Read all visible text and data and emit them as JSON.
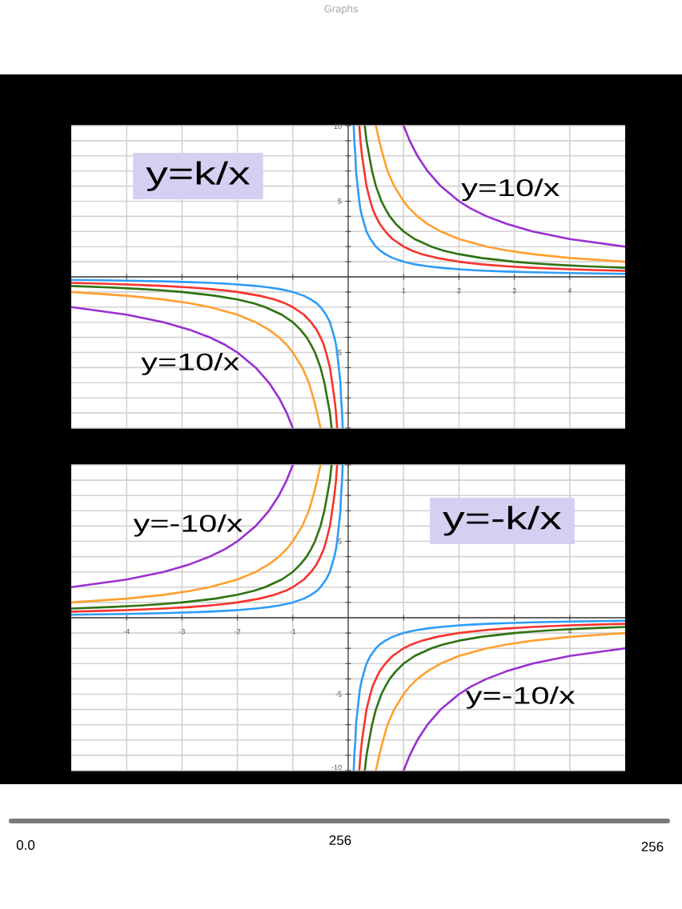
{
  "chart_data": [
    {
      "type": "other",
      "title": "Graphs"
    },
    {
      "type": "line",
      "title": "y=k/x",
      "annotations": [
        "y=10/x",
        "y=10/x"
      ],
      "xlim": [
        -5,
        5
      ],
      "ylim": [
        -10,
        10
      ],
      "xticks": [
        {
          "value": -4,
          "label": null
        },
        {
          "value": -3,
          "label": null
        },
        {
          "value": -2,
          "label": null
        },
        {
          "value": -1,
          "label": null
        },
        1,
        2,
        3,
        4
      ],
      "yticks": [
        {
          "value": -10,
          "label": null
        },
        {
          "value": -9,
          "label": null
        },
        {
          "value": -8,
          "label": null
        },
        {
          "value": -7,
          "label": null
        },
        {
          "value": -6,
          "label": null
        },
        -5,
        {
          "value": -4,
          "label": null
        },
        {
          "value": -3,
          "label": null
        },
        {
          "value": -2,
          "label": null
        },
        {
          "value": -1,
          "label": null
        },
        {
          "value": 1,
          "label": null
        },
        {
          "value": 2,
          "label": null
        },
        {
          "value": 3,
          "label": null
        },
        {
          "value": 4,
          "label": null
        },
        5,
        {
          "value": 6,
          "label": null
        },
        {
          "value": 7,
          "label": null
        },
        {
          "value": 8,
          "label": null
        },
        {
          "value": 9,
          "label": null
        },
        10
      ],
      "grid": true,
      "series": [
        {
          "color": "#9a30d0",
          "x": [
            -5,
            -4,
            -3.33,
            -2.86,
            -2.5,
            -2.22,
            -2,
            -1.67,
            -1.43,
            -1.25,
            -1.11,
            -1,
            0,
            1,
            1.11,
            1.25,
            1.43,
            1.67,
            2,
            2.22,
            2.5,
            2.86,
            3.33,
            4,
            5
          ],
          "values": [
            -2,
            -2.5,
            -3,
            -3.5,
            -4,
            -4.5,
            -5,
            -6,
            -7,
            -8,
            -9,
            -10,
            null,
            10,
            9,
            8,
            7,
            6,
            5,
            4.5,
            4,
            3.5,
            3,
            2.5,
            2
          ]
        },
        {
          "color": "#ffa030",
          "x": [
            -5,
            -4,
            -3.33,
            -2.86,
            -2.5,
            -2,
            -1.67,
            -1.43,
            -1.25,
            -1.11,
            -1,
            -0.83,
            -0.71,
            -0.63,
            -0.56,
            -0.5,
            0,
            0.5,
            0.56,
            0.63,
            0.71,
            0.83,
            1,
            1.11,
            1.25,
            1.43,
            1.67,
            2,
            2.5,
            2.86,
            3.33,
            4,
            5
          ],
          "values": [
            -1,
            -1.25,
            -1.5,
            -1.75,
            -2,
            -2.5,
            -3,
            -3.5,
            -4,
            -4.5,
            -5,
            -6,
            -7,
            -8,
            -9,
            -10,
            null,
            10,
            9,
            8,
            7,
            6,
            5,
            4.5,
            4,
            3.5,
            3,
            2.5,
            2,
            1.75,
            1.5,
            1.25,
            1
          ]
        },
        {
          "color": "#2f7312",
          "x": [
            -5,
            -4.29,
            -3.75,
            -3.33,
            -3,
            -2.4,
            -2,
            -1.71,
            -1.5,
            -1.2,
            -1,
            -0.86,
            -0.75,
            -0.67,
            -0.6,
            -0.5,
            -0.43,
            -0.38,
            -0.33,
            -0.3,
            0,
            0.3,
            0.33,
            0.38,
            0.43,
            0.5,
            0.6,
            0.67,
            0.75,
            0.86,
            1,
            1.2,
            1.5,
            1.71,
            2,
            2.4,
            3,
            3.33,
            3.75,
            4.29,
            5
          ],
          "values": [
            -0.6,
            -0.7,
            -0.8,
            -0.9,
            -1,
            -1.25,
            -1.5,
            -1.75,
            -2,
            -2.5,
            -3,
            -3.5,
            -4,
            -4.5,
            -5,
            -6,
            -7,
            -8,
            -9,
            -10,
            null,
            10,
            9,
            8,
            7,
            6,
            5,
            4.5,
            4,
            3.5,
            3,
            2.5,
            2,
            1.75,
            1.5,
            1.25,
            1,
            0.9,
            0.8,
            0.7,
            0.6
          ]
        },
        {
          "color": "#f8332e",
          "x": [
            -5,
            -4.44,
            -4,
            -3.33,
            -2.86,
            -2.5,
            -2.22,
            -2,
            -1.6,
            -1.33,
            -1.14,
            -1,
            -0.8,
            -0.67,
            -0.57,
            -0.5,
            -0.44,
            -0.4,
            -0.33,
            -0.29,
            -0.25,
            -0.22,
            -0.2,
            0,
            0.2,
            0.22,
            0.25,
            0.29,
            0.33,
            0.4,
            0.44,
            0.5,
            0.57,
            0.67,
            0.8,
            1,
            1.14,
            1.33,
            1.6,
            2,
            2.22,
            2.5,
            2.86,
            3.33,
            4,
            4.44,
            5
          ],
          "values": [
            -0.4,
            -0.45,
            -0.5,
            -0.6,
            -0.7,
            -0.8,
            -0.9,
            -1,
            -1.25,
            -1.5,
            -1.75,
            -2,
            -2.5,
            -3,
            -3.5,
            -4,
            -4.5,
            -5,
            -6,
            -7,
            -8,
            -9,
            -10,
            null,
            10,
            9,
            8,
            7,
            6,
            5,
            4.5,
            4,
            3.5,
            3,
            2.5,
            2,
            1.75,
            1.5,
            1.25,
            1,
            0.9,
            0.8,
            0.7,
            0.6,
            0.5,
            0.45,
            0.4
          ]
        },
        {
          "color": "#2e9cf7",
          "x": [
            -5,
            -4,
            -3.33,
            -2.86,
            -2.5,
            -2.22,
            -2,
            -1.67,
            -1.43,
            -1.25,
            -1.11,
            -1,
            -0.8,
            -0.67,
            -0.57,
            -0.5,
            -0.4,
            -0.33,
            -0.29,
            -0.25,
            -0.22,
            -0.2,
            -0.17,
            -0.14,
            -0.13,
            -0.11,
            -0.1,
            0,
            0.1,
            0.11,
            0.13,
            0.14,
            0.17,
            0.2,
            0.22,
            0.25,
            0.29,
            0.33,
            0.4,
            0.5,
            0.57,
            0.67,
            0.8,
            1,
            1.11,
            1.25,
            1.43,
            1.67,
            2,
            2.22,
            2.5,
            2.86,
            3.33,
            4,
            5
          ],
          "values": [
            -0.2,
            -0.25,
            -0.3,
            -0.35,
            -0.4,
            -0.45,
            -0.5,
            -0.6,
            -0.7,
            -0.8,
            -0.9,
            -1,
            -1.25,
            -1.5,
            -1.75,
            -2,
            -2.5,
            -3,
            -3.5,
            -4,
            -4.5,
            -5,
            -6,
            -7,
            -8,
            -9,
            -10,
            null,
            10,
            9,
            8,
            7,
            6,
            5,
            4.5,
            4,
            3.5,
            3,
            2.5,
            2,
            1.75,
            1.5,
            1.25,
            1,
            0.9,
            0.8,
            0.7,
            0.6,
            0.5,
            0.45,
            0.4,
            0.35,
            0.3,
            0.25,
            0.2
          ]
        }
      ]
    },
    {
      "type": "line",
      "title": "y=-k/x",
      "annotations": [
        "y=-10/x",
        "y=-10/x"
      ],
      "xlim": [
        -5,
        5
      ],
      "ylim": [
        -10,
        10
      ],
      "xticks": [
        -4,
        -3,
        -2,
        -1,
        {
          "value": 1,
          "label": null
        },
        {
          "value": 2,
          "label": null
        },
        {
          "value": 3,
          "label": null
        },
        4
      ],
      "yticks": [
        -10,
        {
          "value": -9,
          "label": null
        },
        {
          "value": -8,
          "label": null
        },
        {
          "value": -7,
          "label": null
        },
        {
          "value": -6,
          "label": null
        },
        -5,
        {
          "value": -4,
          "label": null
        },
        {
          "value": -3,
          "label": null
        },
        {
          "value": -2,
          "label": null
        },
        {
          "value": -1,
          "label": null
        },
        {
          "value": 1,
          "label": null
        },
        {
          "value": 2,
          "label": null
        },
        {
          "value": 3,
          "label": null
        },
        {
          "value": 4,
          "label": null
        },
        5,
        {
          "value": 6,
          "label": null
        },
        {
          "value": 7,
          "label": null
        },
        {
          "value": 8,
          "label": null
        },
        {
          "value": 9,
          "label": null
        },
        {
          "value": 10,
          "label": null
        }
      ],
      "grid": true,
      "series": [
        {
          "color": "#9a30d0",
          "x": [
            -5,
            -4,
            -3.33,
            -2.86,
            -2.5,
            -2.22,
            -2,
            -1.67,
            -1.43,
            -1.25,
            -1.11,
            -1,
            0,
            1,
            1.11,
            1.25,
            1.43,
            1.67,
            2,
            2.22,
            2.5,
            2.86,
            3.33,
            4,
            5
          ],
          "values": [
            2,
            2.5,
            3,
            3.5,
            4,
            4.5,
            5,
            6,
            7,
            8,
            9,
            10,
            null,
            -10,
            -9,
            -8,
            -7,
            -6,
            -5,
            -4.5,
            -4,
            -3.5,
            -3,
            -2.5,
            -2
          ]
        },
        {
          "color": "#ffa030",
          "x": [
            -5,
            -4,
            -3.33,
            -2.86,
            -2.5,
            -2,
            -1.67,
            -1.43,
            -1.25,
            -1.11,
            -1,
            -0.83,
            -0.71,
            -0.63,
            -0.56,
            -0.5,
            0,
            0.5,
            0.56,
            0.63,
            0.71,
            0.83,
            1,
            1.11,
            1.25,
            1.43,
            1.67,
            2,
            2.5,
            2.86,
            3.33,
            4,
            5
          ],
          "values": [
            1,
            1.25,
            1.5,
            1.75,
            2,
            2.5,
            3,
            3.5,
            4,
            4.5,
            5,
            6,
            7,
            8,
            9,
            10,
            null,
            -10,
            -9,
            -8,
            -7,
            -6,
            -5,
            -4.5,
            -4,
            -3.5,
            -3,
            -2.5,
            -2,
            -1.75,
            -1.5,
            -1.25,
            -1
          ]
        },
        {
          "color": "#2f7312",
          "x": [
            -5,
            -4.29,
            -3.75,
            -3.33,
            -3,
            -2.4,
            -2,
            -1.71,
            -1.5,
            -1.2,
            -1,
            -0.86,
            -0.75,
            -0.67,
            -0.6,
            -0.5,
            -0.43,
            -0.38,
            -0.33,
            -0.3,
            0,
            0.3,
            0.33,
            0.38,
            0.43,
            0.5,
            0.6,
            0.67,
            0.75,
            0.86,
            1,
            1.2,
            1.5,
            1.71,
            2,
            2.4,
            3,
            3.33,
            3.75,
            4.29,
            5
          ],
          "values": [
            0.6,
            0.7,
            0.8,
            0.9,
            1,
            1.25,
            1.5,
            1.75,
            2,
            2.5,
            3,
            3.5,
            4,
            4.5,
            5,
            6,
            7,
            8,
            9,
            10,
            null,
            -10,
            -9,
            -8,
            -7,
            -6,
            -5,
            -4.5,
            -4,
            -3.5,
            -3,
            -2.5,
            -2,
            -1.75,
            -1.5,
            -1.25,
            -1,
            -0.9,
            -0.8,
            -0.7,
            -0.6
          ]
        },
        {
          "color": "#f8332e",
          "x": [
            -5,
            -4.44,
            -4,
            -3.33,
            -2.86,
            -2.5,
            -2.22,
            -2,
            -1.6,
            -1.33,
            -1.14,
            -1,
            -0.8,
            -0.67,
            -0.57,
            -0.5,
            -0.44,
            -0.4,
            -0.33,
            -0.29,
            -0.25,
            -0.22,
            -0.2,
            0,
            0.2,
            0.22,
            0.25,
            0.29,
            0.33,
            0.4,
            0.44,
            0.5,
            0.57,
            0.67,
            0.8,
            1,
            1.14,
            1.33,
            1.6,
            2,
            2.22,
            2.5,
            2.86,
            3.33,
            4,
            4.44,
            5
          ],
          "values": [
            0.4,
            0.45,
            0.5,
            0.6,
            0.7,
            0.8,
            0.9,
            1,
            1.25,
            1.5,
            1.75,
            2,
            2.5,
            3,
            3.5,
            4,
            4.5,
            5,
            6,
            7,
            8,
            9,
            10,
            null,
            -10,
            -9,
            -8,
            -7,
            -6,
            -5,
            -4.5,
            -4,
            -3.5,
            -3,
            -2.5,
            -2,
            -1.75,
            -1.5,
            -1.25,
            -1,
            -0.9,
            -0.8,
            -0.7,
            -0.6,
            -0.5,
            -0.45,
            -0.4
          ]
        },
        {
          "color": "#2e9cf7",
          "x": [
            -5,
            -4,
            -3.33,
            -2.86,
            -2.5,
            -2.22,
            -2,
            -1.67,
            -1.43,
            -1.25,
            -1.11,
            -1,
            -0.8,
            -0.67,
            -0.57,
            -0.5,
            -0.4,
            -0.33,
            -0.29,
            -0.25,
            -0.22,
            -0.2,
            -0.17,
            -0.14,
            -0.13,
            -0.11,
            -0.1,
            0,
            0.1,
            0.11,
            0.13,
            0.14,
            0.17,
            0.2,
            0.22,
            0.25,
            0.29,
            0.33,
            0.4,
            0.5,
            0.57,
            0.67,
            0.8,
            1,
            1.11,
            1.25,
            1.43,
            1.67,
            2,
            2.22,
            2.5,
            2.86,
            3.33,
            4,
            5
          ],
          "values": [
            0.2,
            0.25,
            0.3,
            0.35,
            0.4,
            0.45,
            0.5,
            0.6,
            0.7,
            0.8,
            0.9,
            1,
            1.25,
            1.5,
            1.75,
            2,
            2.5,
            3,
            3.5,
            4,
            4.5,
            5,
            6,
            7,
            8,
            9,
            10,
            null,
            -10,
            -9,
            -8,
            -7,
            -6,
            -5,
            -4.5,
            -4,
            -3.5,
            -3,
            -2.5,
            -2,
            -1.75,
            -1.5,
            -1.25,
            -1,
            -0.9,
            -0.8,
            -0.7,
            -0.6,
            -0.5,
            -0.45,
            -0.4,
            -0.35,
            -0.3,
            -0.25,
            -0.2
          ]
        }
      ]
    },
    {
      "type": "other",
      "annotations": [
        "0.0",
        "256",
        "256"
      ]
    }
  ]
}
